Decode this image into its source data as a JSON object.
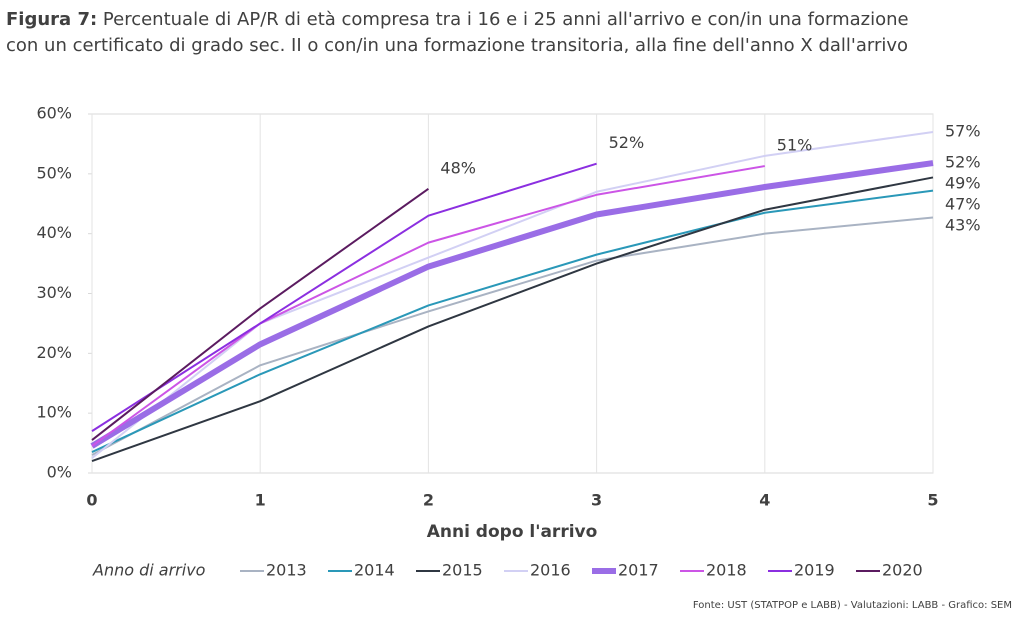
{
  "chart_data": {
    "type": "line",
    "figure_label": "Figura 7:",
    "title": "Percentuale di AP/R di età compresa tra i 16 e i 25 anni all'arrivo e con/in una formazione",
    "subtitle": "con un certificato di grado sec. II o con/in una formazione transitoria, alla fine dell'anno X dall'arrivo",
    "x_label": "Anni dopo l'arrivo",
    "legend_title": "Anno di arrivo",
    "source": "Fonte: UST (STATPOP e LABB) - Valutazioni: LABB - Grafico: SEM",
    "x": [
      0,
      1,
      2,
      3,
      4,
      5
    ],
    "xlim": [
      0,
      5
    ],
    "xticks": [
      0,
      1,
      2,
      3,
      4,
      5
    ],
    "ylim": [
      0,
      60
    ],
    "yticks": [
      {
        "value": 0,
        "label": "0%"
      },
      {
        "value": 10,
        "label": "10%"
      },
      {
        "value": 20,
        "label": "20%"
      },
      {
        "value": 30,
        "label": "30%"
      },
      {
        "value": 40,
        "label": "40%"
      },
      {
        "value": 50,
        "label": "50%"
      },
      {
        "value": 60,
        "label": "60%"
      }
    ],
    "grid": "x",
    "legend": "bottom",
    "series": [
      {
        "name": "2013",
        "color": "#a9b3c3",
        "width": 2,
        "values": [
          3,
          18,
          27,
          35.5,
          40,
          42.7
        ],
        "value_labels": [
          null,
          null,
          null,
          null,
          null,
          "43%"
        ]
      },
      {
        "name": "2014",
        "color": "#2a98b8",
        "width": 2,
        "values": [
          3.5,
          16.5,
          28,
          36.5,
          43.5,
          47.2
        ],
        "value_labels": [
          null,
          null,
          null,
          null,
          null,
          "47%"
        ]
      },
      {
        "name": "2015",
        "color": "#2f3742",
        "width": 2,
        "values": [
          2,
          12,
          24.5,
          35,
          44,
          49.4
        ],
        "value_labels": [
          null,
          null,
          null,
          null,
          null,
          "49%"
        ]
      },
      {
        "name": "2016",
        "color": "#d2d0f4",
        "width": 2,
        "values": [
          2.5,
          25,
          36,
          47,
          53,
          57
        ],
        "value_labels": [
          null,
          null,
          null,
          null,
          null,
          "57%"
        ]
      },
      {
        "name": "2017",
        "color": "#9a6de6",
        "width": 6,
        "values": [
          4.5,
          21.5,
          34.5,
          43.2,
          47.8,
          51.8
        ],
        "value_labels": [
          null,
          null,
          null,
          null,
          null,
          "52%"
        ]
      },
      {
        "name": "2018",
        "color": "#cc55e6",
        "width": 2,
        "values": [
          4.5,
          25,
          38.5,
          46.5,
          51.3,
          null
        ],
        "value_labels": [
          null,
          null,
          null,
          null,
          "51%",
          null
        ]
      },
      {
        "name": "2019",
        "color": "#8b2fe0",
        "width": 2,
        "values": [
          7,
          25,
          43,
          51.7,
          null,
          null
        ],
        "value_labels": [
          null,
          null,
          null,
          "52%",
          null,
          null
        ]
      },
      {
        "name": "2020",
        "color": "#5b1b60",
        "width": 2,
        "values": [
          5.5,
          27.5,
          47.5,
          null,
          null,
          null
        ],
        "value_labels": [
          null,
          null,
          "48%",
          null,
          null,
          null
        ]
      }
    ]
  }
}
